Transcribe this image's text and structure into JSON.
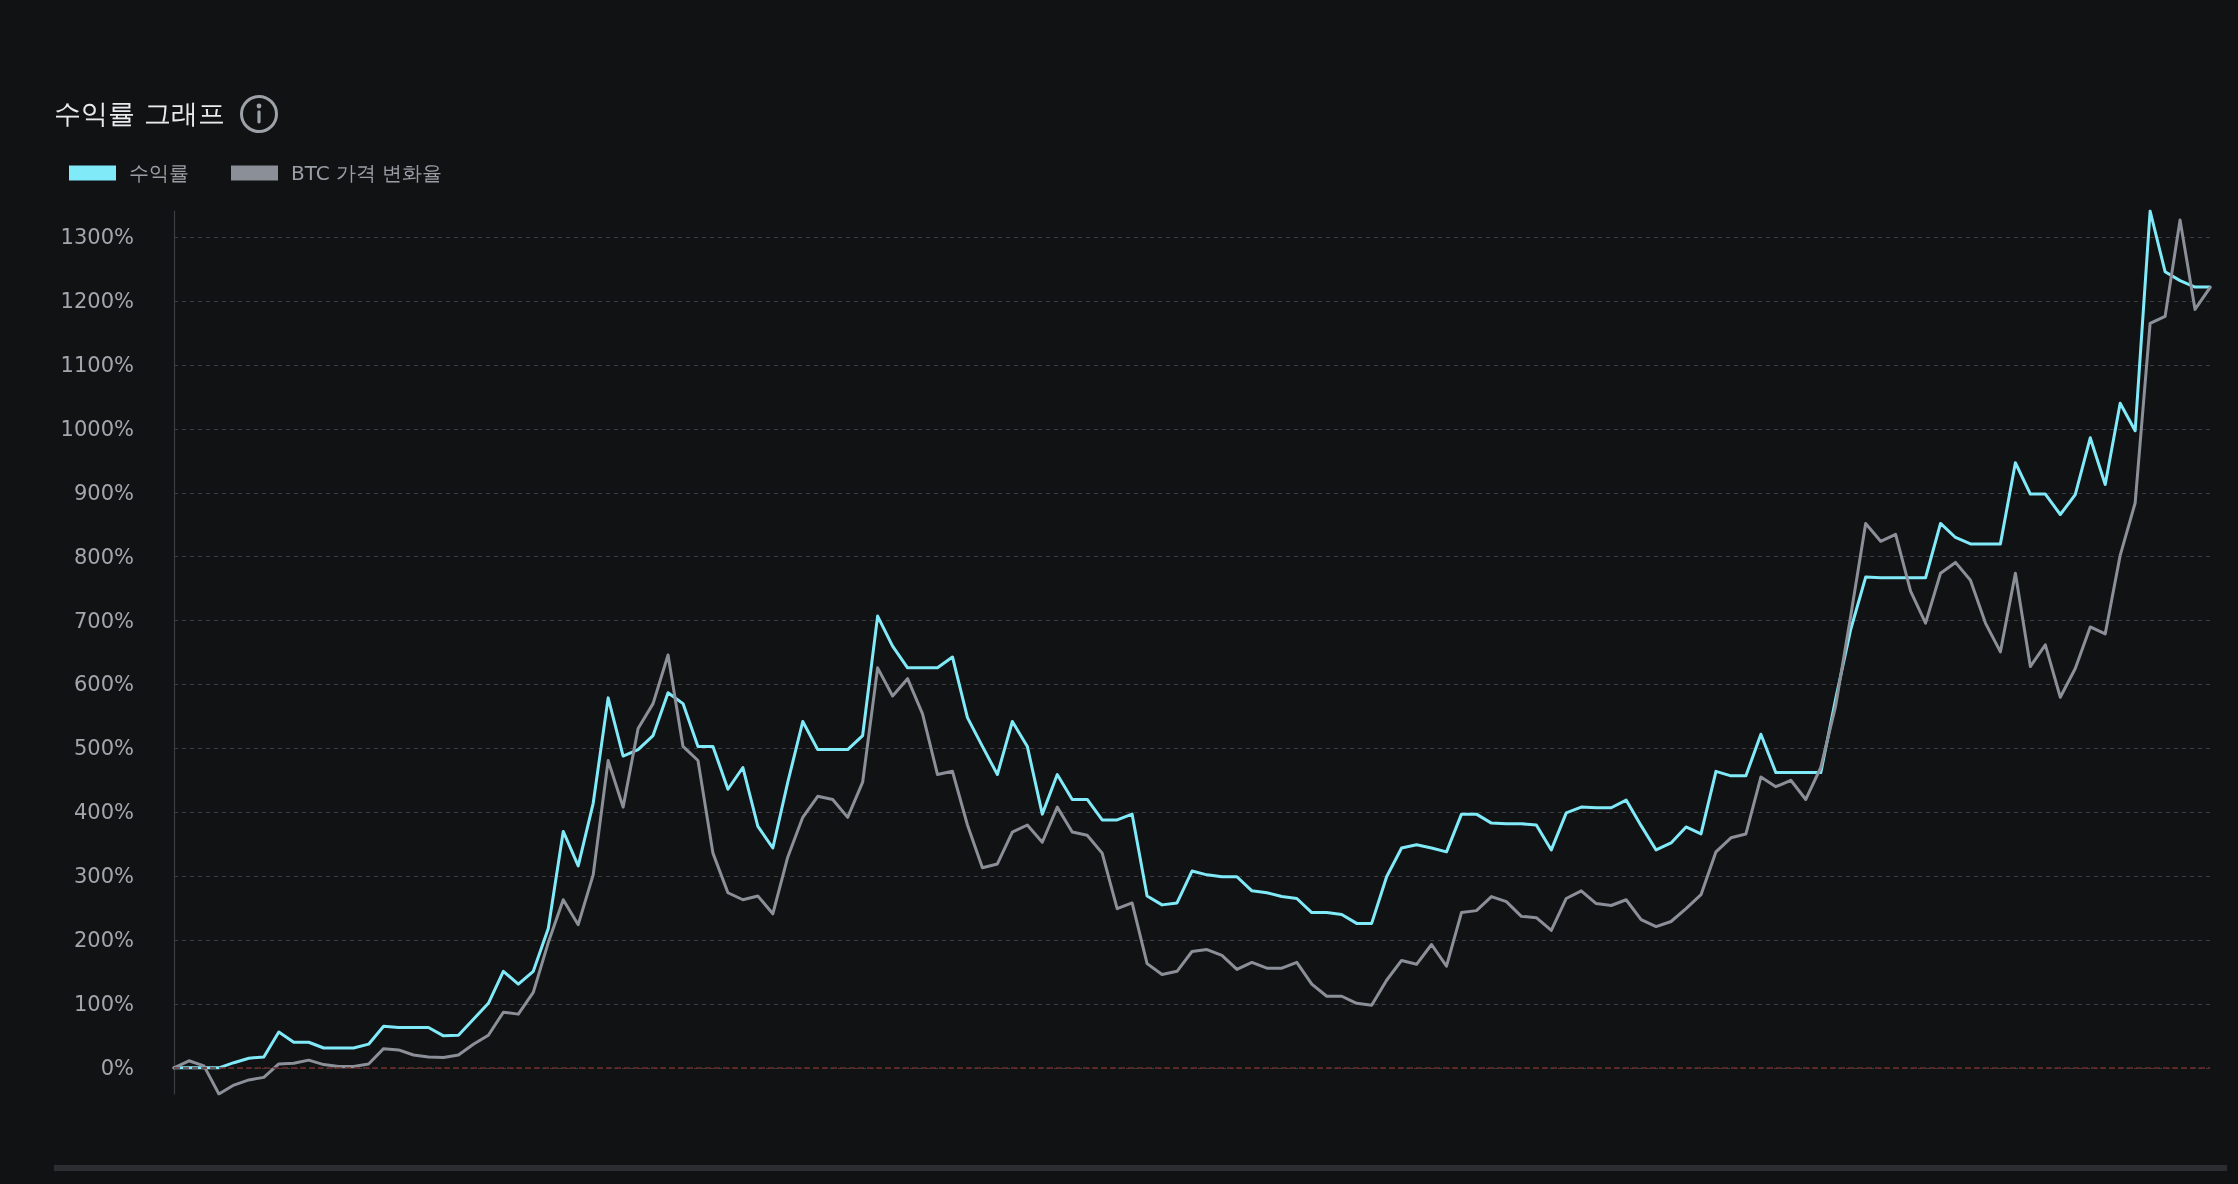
{
  "chart_data": {
    "type": "line",
    "title": "수익률 그래프",
    "categories": [
      null,
      null,
      null,
      null,
      null,
      null,
      null,
      null,
      null,
      null,
      null,
      null,
      null,
      null,
      null,
      null,
      null,
      null,
      null,
      null,
      null,
      null,
      null,
      null,
      null,
      null,
      null,
      null,
      null,
      null,
      null,
      null,
      null,
      null,
      null,
      null,
      null,
      null,
      null,
      null,
      null,
      null,
      null,
      null,
      null,
      null,
      null,
      null,
      null,
      null,
      null,
      null,
      null,
      null,
      null,
      null,
      null,
      null,
      null,
      null,
      null,
      null,
      null,
      null,
      null,
      null,
      null,
      null,
      null,
      null,
      null,
      null,
      null,
      null,
      null,
      null,
      null,
      null,
      null,
      null,
      null,
      null,
      null,
      null,
      null,
      null,
      null,
      null,
      null,
      null,
      null,
      null,
      null,
      null,
      null,
      null,
      null,
      null,
      null,
      null,
      null,
      null,
      null,
      null,
      null,
      null,
      null,
      null,
      null,
      null,
      null,
      null,
      null,
      null,
      null,
      null,
      null,
      null,
      null,
      null,
      null,
      null,
      null,
      null,
      null,
      null,
      null,
      null,
      null,
      null,
      null,
      null,
      null,
      null,
      null,
      null,
      null
    ],
    "series": [
      {
        "name": "수익률",
        "color": "#80eaf9",
        "values": [
          0,
          0,
          0,
          0,
          8,
          15,
          17,
          56,
          40,
          40,
          31,
          31,
          31,
          37,
          65,
          63,
          63,
          63,
          50,
          51,
          76,
          101,
          151,
          131,
          151,
          218,
          370,
          316,
          414,
          579,
          488,
          498,
          520,
          587,
          570,
          503,
          503,
          436,
          470,
          378,
          344,
          447,
          542,
          498,
          498,
          498,
          520,
          707,
          660,
          626,
          626,
          626,
          643,
          548,
          503,
          459,
          542,
          503,
          397,
          459,
          420,
          420,
          388,
          388,
          397,
          269,
          255,
          258,
          308,
          302,
          299,
          299,
          277,
          274,
          268,
          265,
          243,
          243,
          240,
          226,
          226,
          299,
          344,
          349,
          344,
          338,
          397,
          397,
          383,
          382,
          382,
          380,
          341,
          399,
          408,
          407,
          407,
          419,
          379,
          341,
          352,
          377,
          366,
          464,
          457,
          457,
          522,
          462,
          462,
          462,
          462,
          578,
          686,
          768,
          767,
          767,
          767,
          767,
          852,
          830,
          820,
          820,
          820,
          947,
          898,
          898,
          866,
          897,
          986,
          913,
          1040,
          997,
          1341,
          1246,
          1232,
          1222,
          1222
        ]
      },
      {
        "name": "BTC 가격 변화율",
        "color": "#8a8f98",
        "values": [
          0,
          11,
          3,
          -41,
          -27,
          -19,
          -15,
          6,
          7,
          12,
          5,
          2,
          2,
          6,
          30,
          28,
          20,
          17,
          16,
          20,
          37,
          51,
          87,
          84,
          118,
          196,
          263,
          224,
          302,
          481,
          408,
          531,
          570,
          646,
          503,
          481,
          336,
          274,
          263,
          269,
          241,
          330,
          392,
          425,
          420,
          392,
          447,
          626,
          582,
          609,
          554,
          459,
          464,
          380,
          313,
          319,
          369,
          380,
          353,
          408,
          369,
          364,
          336,
          249,
          258,
          163,
          146,
          151,
          182,
          185,
          176,
          154,
          165,
          156,
          156,
          165,
          131,
          112,
          112,
          101,
          98,
          137,
          168,
          162,
          193,
          159,
          243,
          246,
          268,
          260,
          237,
          235,
          215,
          265,
          277,
          257,
          254,
          263,
          232,
          221,
          229,
          249,
          271,
          338,
          360,
          366,
          455,
          440,
          450,
          420,
          470,
          567,
          707,
          852,
          824,
          835,
          746,
          696,
          774,
          791,
          763,
          696,
          651,
          774,
          628,
          662,
          580,
          625,
          690,
          679,
          802,
          884,
          1165,
          1176,
          1327,
          1187,
          1221
        ]
      }
    ],
    "ylim": [
      -41,
      1341
    ],
    "yticks": [
      {
        "value": 0,
        "label": "0%"
      },
      {
        "value": 100,
        "label": "100%"
      },
      {
        "value": 200,
        "label": "200%"
      },
      {
        "value": 300,
        "label": "300%"
      },
      {
        "value": 400,
        "label": "400%"
      },
      {
        "value": 500,
        "label": "500%"
      },
      {
        "value": 600,
        "label": "600%"
      },
      {
        "value": 700,
        "label": "700%"
      },
      {
        "value": 800,
        "label": "800%"
      },
      {
        "value": 900,
        "label": "900%"
      },
      {
        "value": 1000,
        "label": "1000%"
      },
      {
        "value": 1100,
        "label": "1100%"
      },
      {
        "value": 1200,
        "label": "1200%"
      },
      {
        "value": 1300,
        "label": "1300%"
      }
    ],
    "ref_lines": [
      {
        "axis": "y",
        "value": 0,
        "color": "#6e2c2c",
        "line_style": "dashed"
      }
    ],
    "grid": "y",
    "legend": "top left",
    "tick_labels": "y"
  }
}
